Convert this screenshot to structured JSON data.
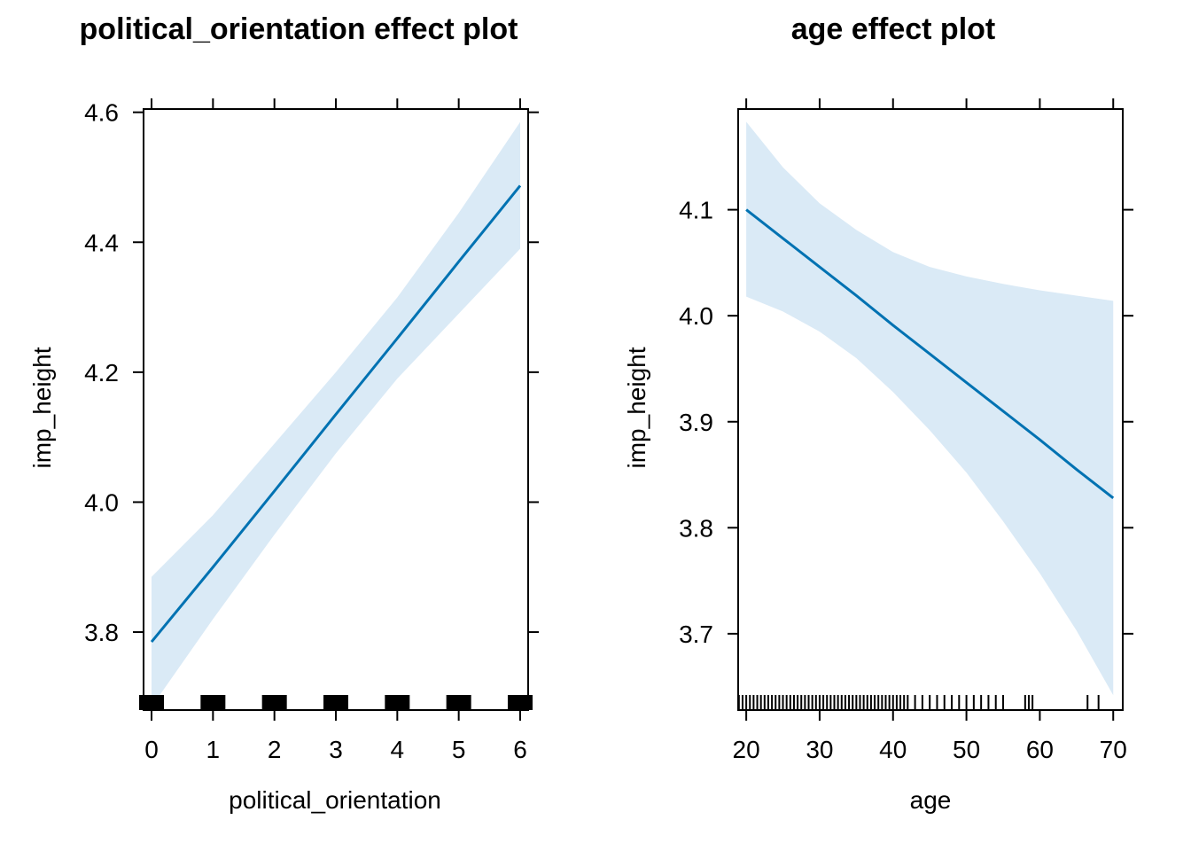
{
  "chart_data": [
    {
      "type": "line",
      "title": "political_orientation effect plot",
      "xlabel": "political_orientation",
      "ylabel": "imp_height",
      "xlim": [
        -0.13,
        6.13
      ],
      "ylim": [
        3.68,
        4.605
      ],
      "x_ticks": [
        0,
        1,
        2,
        3,
        4,
        5,
        6
      ],
      "x_tick_labels": [
        "0",
        "1",
        "2",
        "3",
        "4",
        "5",
        "6"
      ],
      "y_ticks": [
        3.8,
        4.0,
        4.2,
        4.4,
        4.6
      ],
      "y_tick_labels": [
        "3.8",
        "4.0",
        "4.2",
        "4.4",
        "4.6"
      ],
      "series": [
        {
          "x": [
            0,
            1,
            2,
            3,
            4,
            5,
            6
          ],
          "y": [
            3.785,
            3.9,
            4.017,
            4.135,
            4.252,
            4.37,
            4.487
          ],
          "lower": [
            3.685,
            3.82,
            3.95,
            4.075,
            4.19,
            4.29,
            4.39
          ],
          "upper": [
            3.885,
            3.98,
            4.09,
            4.2,
            4.315,
            4.445,
            4.585
          ]
        }
      ],
      "rug": [
        0,
        1,
        2,
        3,
        4,
        5,
        6
      ],
      "grid": false
    },
    {
      "type": "line",
      "title": "age effect plot",
      "xlabel": "age",
      "ylabel": "imp_height",
      "xlim": [
        18.9,
        71.3
      ],
      "ylim": [
        3.628,
        4.195
      ],
      "x_ticks": [
        20,
        30,
        40,
        50,
        60,
        70
      ],
      "x_tick_labels": [
        "20",
        "30",
        "40",
        "50",
        "60",
        "70"
      ],
      "y_ticks": [
        3.7,
        3.8,
        3.9,
        4.0,
        4.1
      ],
      "y_tick_labels": [
        "3.7",
        "3.8",
        "3.9",
        "4.0",
        "4.1"
      ],
      "series": [
        {
          "x": [
            20,
            25,
            30,
            35,
            40,
            45,
            50,
            55,
            60,
            65,
            70
          ],
          "y": [
            4.1,
            4.073,
            4.046,
            4.019,
            3.991,
            3.964,
            3.937,
            3.91,
            3.883,
            3.855,
            3.828
          ],
          "lower": [
            4.018,
            4.004,
            3.985,
            3.96,
            3.928,
            3.892,
            3.852,
            3.806,
            3.757,
            3.703,
            3.642
          ],
          "upper": [
            4.183,
            4.14,
            4.106,
            4.081,
            4.06,
            4.046,
            4.037,
            4.03,
            4.024,
            4.019,
            4.014
          ]
        }
      ],
      "rug": [
        19,
        19.5,
        20,
        20.5,
        21,
        21.5,
        22,
        22.5,
        23,
        23.5,
        24,
        24.5,
        25,
        25.5,
        26,
        26.5,
        27,
        27.5,
        28,
        28.5,
        29,
        29.5,
        30,
        30.5,
        31,
        31.5,
        32,
        32.5,
        33,
        33.5,
        34,
        34.5,
        35,
        35.5,
        36,
        36.5,
        37,
        37.5,
        38,
        38.5,
        39,
        39.5,
        40,
        40.5,
        41,
        41.5,
        42,
        43,
        44,
        45,
        46,
        47,
        48,
        49,
        50,
        51,
        52,
        53,
        54,
        55,
        58,
        58.5,
        59,
        66.5,
        68
      ],
      "grid": false
    }
  ],
  "colors": {
    "line": "#0072b2",
    "band": "#daeaf6",
    "axis": "#000000"
  }
}
